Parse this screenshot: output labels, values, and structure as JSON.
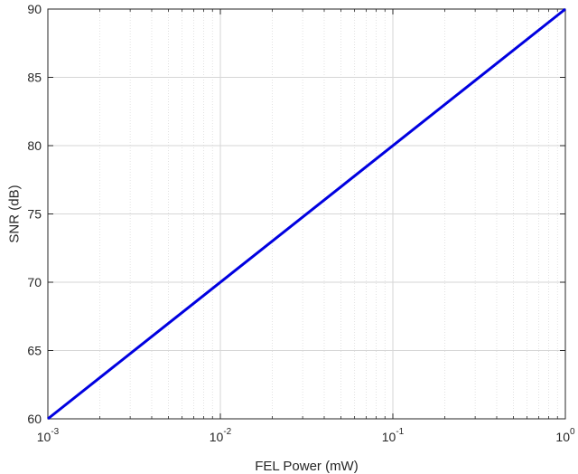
{
  "chart_data": {
    "type": "line",
    "title": "",
    "xlabel": "FEL Power (mW)",
    "ylabel": "SNR (dB)",
    "xscale": "log",
    "xlim": [
      0.001,
      1
    ],
    "ylim": [
      60,
      90
    ],
    "grid": true,
    "minor_grid": true,
    "x_ticks": [
      {
        "base": "10",
        "exp": "-3",
        "value": 0.001
      },
      {
        "base": "10",
        "exp": "-2",
        "value": 0.01
      },
      {
        "base": "10",
        "exp": "-1",
        "value": 0.1
      },
      {
        "base": "10",
        "exp": "0",
        "value": 1
      }
    ],
    "y_ticks": [
      "60",
      "65",
      "70",
      "75",
      "80",
      "85",
      "90"
    ],
    "series": [
      {
        "color": "#0000e0",
        "x": [
          0.001,
          1
        ],
        "y": [
          60,
          90
        ]
      }
    ]
  }
}
